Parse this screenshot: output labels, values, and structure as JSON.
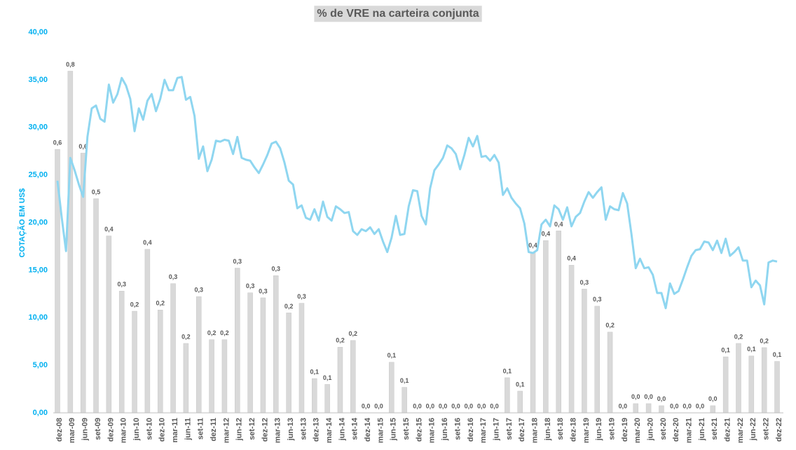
{
  "chart_data": {
    "type": "bar",
    "title": "% de VRE na carteira conjunta",
    "y_label": "COTAÇÃO EM US$",
    "categories": [
      "dez-08",
      null,
      null,
      "mar-09",
      null,
      null,
      "jun-09",
      null,
      null,
      "set-09",
      null,
      null,
      "dez-09",
      null,
      null,
      "mar-10",
      null,
      null,
      "jun-10",
      null,
      null,
      "set-10",
      null,
      null,
      "dez-10",
      null,
      null,
      "mar-11",
      null,
      null,
      "jun-11",
      null,
      null,
      "set-11",
      null,
      null,
      "dez-11",
      null,
      null,
      "mar-12",
      null,
      null,
      "jun-12",
      null,
      null,
      "set-12",
      null,
      null,
      "dez-12",
      null,
      null,
      "mar-13",
      null,
      null,
      "jun-13",
      null,
      null,
      "set-13",
      null,
      null,
      "dez-13",
      null,
      null,
      "mar-14",
      null,
      null,
      "jun-14",
      null,
      null,
      "set-14",
      null,
      null,
      "dez-14",
      null,
      null,
      "mar-15",
      null,
      null,
      "jun-15",
      null,
      null,
      "set-15",
      null,
      null,
      "dez-15",
      null,
      null,
      "mar-16",
      null,
      null,
      "jun-16",
      null,
      null,
      "set-16",
      null,
      null,
      "dez-16",
      null,
      null,
      "mar-17",
      null,
      null,
      "jun-17",
      null,
      null,
      "set-17",
      null,
      null,
      "dez-17",
      null,
      null,
      "mar-18",
      null,
      null,
      "jun-18",
      null,
      null,
      "set-18",
      null,
      null,
      "dez-18",
      null,
      null,
      "mar-19",
      null,
      null,
      "jun-19",
      null,
      null,
      "set-19",
      null,
      null,
      "dez-19",
      null,
      null,
      "mar-20",
      null,
      null,
      "jun-20",
      null,
      null,
      "set-20",
      null,
      null,
      "dez-20",
      null,
      null,
      "mar-21",
      null,
      null,
      "jun-21",
      null,
      null,
      "set-21",
      null,
      null,
      "dez-21",
      null,
      null,
      "mar-22",
      null,
      null,
      "jun-22",
      null,
      null,
      "set-22",
      null,
      null,
      "dez-22"
    ],
    "series": [
      {
        "type": "bar",
        "axis": "y2",
        "color": "#d9d9d9",
        "values": [
          0.63,
          null,
          null,
          0.817,
          null,
          null,
          0.621,
          null,
          null,
          0.512,
          null,
          null,
          0.423,
          null,
          null,
          0.291,
          null,
          null,
          0.243,
          null,
          null,
          0.391,
          null,
          null,
          0.246,
          null,
          null,
          0.309,
          null,
          null,
          0.166,
          null,
          null,
          0.278,
          null,
          null,
          0.175,
          null,
          null,
          0.175,
          null,
          null,
          0.346,
          null,
          null,
          0.287,
          null,
          null,
          0.275,
          null,
          null,
          0.328,
          null,
          null,
          0.239,
          null,
          null,
          0.262,
          null,
          null,
          0.082,
          null,
          null,
          0.068,
          null,
          null,
          0.157,
          null,
          null,
          0.173,
          null,
          null,
          0,
          null,
          null,
          0,
          null,
          null,
          0.121,
          null,
          null,
          0.061,
          null,
          null,
          0,
          null,
          null,
          0,
          null,
          null,
          0,
          null,
          null,
          0,
          null,
          null,
          0,
          null,
          null,
          0,
          null,
          null,
          0,
          null,
          null,
          0.084,
          null,
          null,
          0.052,
          null,
          null,
          0.384,
          null,
          null,
          0.412,
          null,
          null,
          0.435,
          null,
          null,
          0.353,
          null,
          null,
          0.296,
          null,
          null,
          0.255,
          null,
          null,
          0.193,
          null,
          null,
          0,
          null,
          null,
          0.022,
          null,
          null,
          0.022,
          null,
          null,
          0.017,
          null,
          null,
          0,
          null,
          null,
          0,
          null,
          null,
          0,
          null,
          null,
          0.017,
          null,
          null,
          0.134,
          null,
          null,
          0.166,
          null,
          null,
          0.136,
          null,
          null,
          0.156,
          null,
          null,
          0.123
        ],
        "value_labels": [
          "0,6",
          null,
          null,
          "0,8",
          null,
          null,
          "0,6",
          null,
          null,
          "0,5",
          null,
          null,
          "0,4",
          null,
          null,
          "0,3",
          null,
          null,
          "0,2",
          null,
          null,
          "0,4",
          null,
          null,
          "0,2",
          null,
          null,
          "0,3",
          null,
          null,
          "0,2",
          null,
          null,
          "0,3",
          null,
          null,
          "0,2",
          null,
          null,
          "0,2",
          null,
          null,
          "0,3",
          null,
          null,
          "0,3",
          null,
          null,
          "0,3",
          null,
          null,
          "0,3",
          null,
          null,
          "0,2",
          null,
          null,
          "0,3",
          null,
          null,
          "0,1",
          null,
          null,
          "0,1",
          null,
          null,
          "0,2",
          null,
          null,
          "0,2",
          null,
          null,
          "0,0",
          null,
          null,
          "0,0",
          null,
          null,
          "0,1",
          null,
          null,
          "0,1",
          null,
          null,
          "0,0",
          null,
          null,
          "0,0",
          null,
          null,
          "0,0",
          null,
          null,
          "0,0",
          null,
          null,
          "0,0",
          null,
          null,
          "0,0",
          null,
          null,
          "0,0",
          null,
          null,
          "0,1",
          null,
          null,
          "0,1",
          null,
          null,
          "0,4",
          null,
          null,
          "0,4",
          null,
          null,
          "0,4",
          null,
          null,
          "0,4",
          null,
          null,
          "0,3",
          null,
          null,
          "0,3",
          null,
          null,
          "0,2",
          null,
          null,
          "0,0",
          null,
          null,
          "0,0",
          null,
          null,
          "0,0",
          null,
          null,
          "0,0",
          null,
          null,
          "0,0",
          null,
          null,
          "0,0",
          null,
          null,
          "0,0",
          null,
          null,
          "0,0",
          null,
          null,
          "0,1",
          null,
          null,
          "0,2",
          null,
          null,
          "0,1",
          null,
          null,
          "0,2",
          null,
          null,
          "0,1"
        ]
      },
      {
        "type": "line",
        "color": "#8fd6f0",
        "values": [
          24.4,
          20.5,
          17.0,
          26.8,
          25.5,
          24.0,
          22.7,
          29.0,
          32.0,
          32.3,
          30.9,
          30.6,
          34.5,
          32.6,
          33.5,
          35.2,
          34.4,
          33.0,
          29.6,
          32.0,
          30.8,
          32.8,
          33.5,
          31.7,
          33.0,
          35.0,
          33.9,
          33.9,
          35.2,
          35.3,
          32.9,
          33.2,
          31.2,
          26.7,
          28.0,
          25.4,
          26.6,
          28.6,
          28.5,
          28.7,
          28.6,
          27.2,
          29.0,
          26.8,
          26.6,
          26.5,
          25.8,
          25.2,
          26.1,
          27.1,
          28.3,
          28.5,
          27.8,
          26.3,
          24.4,
          24.0,
          21.5,
          21.8,
          20.5,
          20.3,
          21.4,
          20.2,
          22.2,
          20.6,
          20.2,
          21.7,
          21.4,
          21.0,
          21.1,
          19.1,
          18.7,
          19.3,
          19.1,
          19.5,
          18.8,
          19.3,
          18.0,
          16.9,
          18.4,
          20.7,
          18.7,
          18.8,
          21.7,
          23.4,
          23.3,
          20.7,
          19.8,
          23.6,
          25.5,
          26.1,
          26.8,
          28.1,
          27.8,
          27.2,
          25.6,
          27.1,
          28.9,
          28.0,
          29.1,
          26.9,
          27.0,
          26.5,
          27.1,
          26.3,
          22.9,
          23.6,
          22.6,
          22.0,
          21.5,
          19.9,
          16.9,
          16.8,
          17.1,
          19.8,
          20.3,
          19.6,
          21.8,
          21.4,
          20.3,
          21.6,
          19.6,
          20.6,
          21.0,
          22.2,
          23.2,
          22.6,
          23.2,
          23.7,
          20.3,
          21.7,
          21.4,
          21.3,
          23.1,
          22.0,
          18.8,
          15.2,
          16.2,
          15.2,
          15.3,
          14.5,
          12.6,
          12.6,
          11.0,
          13.6,
          12.5,
          12.8,
          14.0,
          15.3,
          16.5,
          17.1,
          17.2,
          18.0,
          17.9,
          17.1,
          18.1,
          16.8,
          18.3,
          16.5,
          16.9,
          17.4,
          16.0,
          16.0,
          13.2,
          13.9,
          13.4,
          11.4,
          15.8,
          16.0,
          15.9
        ]
      }
    ],
    "ylim": [
      0,
      40
    ],
    "yticks": [
      {
        "value": 0,
        "label": "0,00"
      },
      {
        "value": 5,
        "label": "5,00"
      },
      {
        "value": 10,
        "label": "10,00"
      },
      {
        "value": 15,
        "label": "15,00"
      },
      {
        "value": 20,
        "label": "20,00"
      },
      {
        "value": 25,
        "label": "25,00"
      },
      {
        "value": 30,
        "label": "30,00"
      },
      {
        "value": 35,
        "label": "35,00"
      },
      {
        "value": 40,
        "label": "40,00"
      }
    ],
    "y2lim": [
      0,
      0.91
    ],
    "grid": false
  }
}
